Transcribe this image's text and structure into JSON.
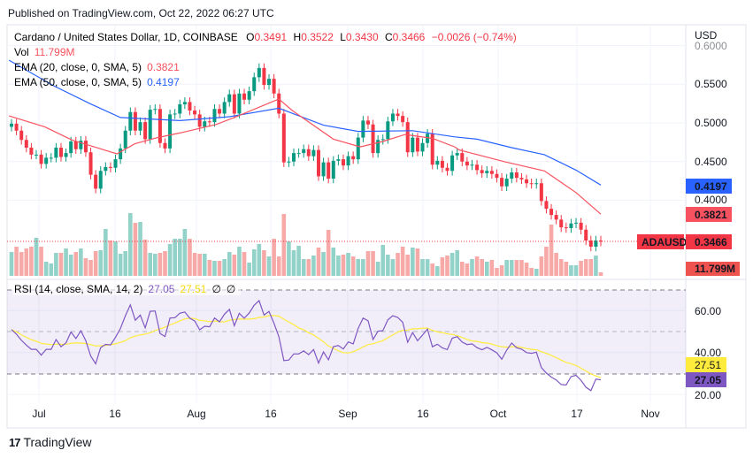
{
  "header": {
    "published": "Published on TradingView.com, Oct 22, 2022 06:27 UTC"
  },
  "legend": {
    "symbol": "Cardano / United States Dollar, 1D, COINBASE",
    "o_label": "O",
    "o": "0.3491",
    "h_label": "H",
    "h": "0.3522",
    "l_label": "L",
    "l": "0.3430",
    "c_label": "C",
    "c": "0.3466",
    "change": "−0.0026 (−0.74%)",
    "vol_label": "Vol",
    "vol": "11.799M",
    "ema20_label": "EMA (20, close, 0, SMA, 5)",
    "ema20": "0.3821",
    "ema50_label": "EMA (50, close, 0, SMA, 5)",
    "ema50": "0.4197",
    "rsi_label": "RSI (14, close, SMA, 14, 2)",
    "rsi": "27.05",
    "rsi_sma": "27.51",
    "rsi_extra1": "∅",
    "rsi_extra2": "∅"
  },
  "axis": {
    "currency": "USD",
    "price_ticks": [
      "0.6000",
      "0.5500",
      "0.5000",
      "0.4500",
      "0.4000"
    ],
    "rsi_ticks": [
      "60.00",
      "40.00",
      "20.00"
    ],
    "time_ticks": [
      "Jul",
      "16",
      "Aug",
      "16",
      "Sep",
      "16",
      "Oct",
      "17",
      "Nov"
    ],
    "badges": {
      "ema50": "0.4197",
      "ema20": "0.3821",
      "symbol": "ADAUSD",
      "last": "0.3466",
      "vol": "11.799M",
      "rsi_sma": "27.51",
      "rsi": "27.05"
    }
  },
  "colors": {
    "up": "#089981",
    "down": "#f23645",
    "vol_up": "#92d2c8",
    "vol_down": "#f7a9a7",
    "ema20": "#f7525f",
    "ema50": "#2962ff",
    "rsi": "#7e57c2",
    "rsi_sma": "#ffeb3b"
  },
  "footer": {
    "brand": "TradingView"
  },
  "chart_data": {
    "type": "candlestick",
    "title": "Cardano / United States Dollar, 1D, COINBASE",
    "ylabel": "USD",
    "ylim": [
      0.33,
      0.6
    ],
    "first_open": 0.495,
    "closes": [
      0.499,
      0.49,
      0.478,
      0.468,
      0.459,
      0.459,
      0.447,
      0.455,
      0.455,
      0.468,
      0.456,
      0.461,
      0.476,
      0.466,
      0.477,
      0.462,
      0.433,
      0.415,
      0.438,
      0.443,
      0.442,
      0.453,
      0.467,
      0.49,
      0.514,
      0.49,
      0.501,
      0.479,
      0.517,
      0.518,
      0.474,
      0.467,
      0.511,
      0.512,
      0.524,
      0.527,
      0.516,
      0.511,
      0.495,
      0.502,
      0.501,
      0.518,
      0.512,
      0.527,
      0.537,
      0.512,
      0.538,
      0.53,
      0.541,
      0.559,
      0.571,
      0.549,
      0.557,
      0.538,
      0.512,
      0.449,
      0.45,
      0.461,
      0.461,
      0.466,
      0.457,
      0.465,
      0.431,
      0.449,
      0.428,
      0.451,
      0.453,
      0.445,
      0.457,
      0.453,
      0.481,
      0.503,
      0.498,
      0.461,
      0.478,
      0.479,
      0.502,
      0.512,
      0.509,
      0.501,
      0.462,
      0.481,
      0.463,
      0.474,
      0.486,
      0.446,
      0.451,
      0.442,
      0.438,
      0.458,
      0.461,
      0.45,
      0.445,
      0.446,
      0.439,
      0.435,
      0.438,
      0.434,
      0.429,
      0.418,
      0.428,
      0.436,
      0.429,
      0.427,
      0.422,
      0.421,
      0.422,
      0.399,
      0.389,
      0.381,
      0.375,
      0.365,
      0.364,
      0.37,
      0.371,
      0.362,
      0.348,
      0.34,
      0.348,
      0.3466
    ],
    "volume_millions": [
      81,
      99,
      81,
      93,
      99,
      129,
      99,
      48,
      42,
      78,
      78,
      93,
      72,
      81,
      93,
      60,
      54,
      84,
      87,
      159,
      120,
      117,
      75,
      84,
      213,
      180,
      183,
      123,
      78,
      75,
      78,
      84,
      108,
      126,
      126,
      159,
      126,
      78,
      75,
      75,
      54,
      51,
      51,
      57,
      81,
      72,
      99,
      81,
      45,
      90,
      108,
      87,
      66,
      126,
      66,
      210,
      117,
      87,
      102,
      57,
      57,
      69,
      96,
      81,
      156,
      96,
      69,
      72,
      78,
      66,
      57,
      57,
      84,
      84,
      48,
      105,
      72,
      57,
      78,
      99,
      72,
      96,
      93,
      57,
      57,
      42,
      33,
      63,
      69,
      78,
      87,
      48,
      42,
      57,
      66,
      57,
      48,
      54,
      27,
      36,
      54,
      54,
      54,
      54,
      45,
      27,
      24,
      66,
      99,
      174,
      78,
      57,
      48,
      36,
      36,
      51,
      57,
      57,
      69,
      12
    ],
    "ema20": [
      [
        -0.5,
        0.509
      ],
      [
        6.7,
        0.495
      ],
      [
        12.2,
        0.478
      ],
      [
        21.3,
        0.46
      ],
      [
        24.9,
        0.473
      ],
      [
        29.5,
        0.481
      ],
      [
        34,
        0.487
      ],
      [
        41.3,
        0.498
      ],
      [
        45,
        0.507
      ],
      [
        54,
        0.531
      ],
      [
        56.7,
        0.516
      ],
      [
        65,
        0.479
      ],
      [
        70.4,
        0.469
      ],
      [
        75,
        0.476
      ],
      [
        79.5,
        0.485
      ],
      [
        85,
        0.48
      ],
      [
        89.5,
        0.469
      ],
      [
        90.4,
        0.465
      ],
      [
        99.5,
        0.45
      ],
      [
        107.6,
        0.438
      ],
      [
        114,
        0.41
      ],
      [
        119,
        0.3821
      ]
    ],
    "ema50": [
      [
        -0.5,
        0.581
      ],
      [
        8.5,
        0.548
      ],
      [
        15.8,
        0.525
      ],
      [
        22,
        0.507
      ],
      [
        34,
        0.503
      ],
      [
        44,
        0.508
      ],
      [
        54,
        0.519
      ],
      [
        63,
        0.497
      ],
      [
        70,
        0.489
      ],
      [
        81,
        0.49
      ],
      [
        89.5,
        0.482
      ],
      [
        94,
        0.479
      ],
      [
        101,
        0.468
      ],
      [
        107.6,
        0.459
      ],
      [
        114,
        0.439
      ],
      [
        119,
        0.4197
      ]
    ],
    "rsi_levels": {
      "upper": 70,
      "middle": 50,
      "lower": 30
    },
    "rsi_ylim": [
      15,
      75
    ]
  }
}
